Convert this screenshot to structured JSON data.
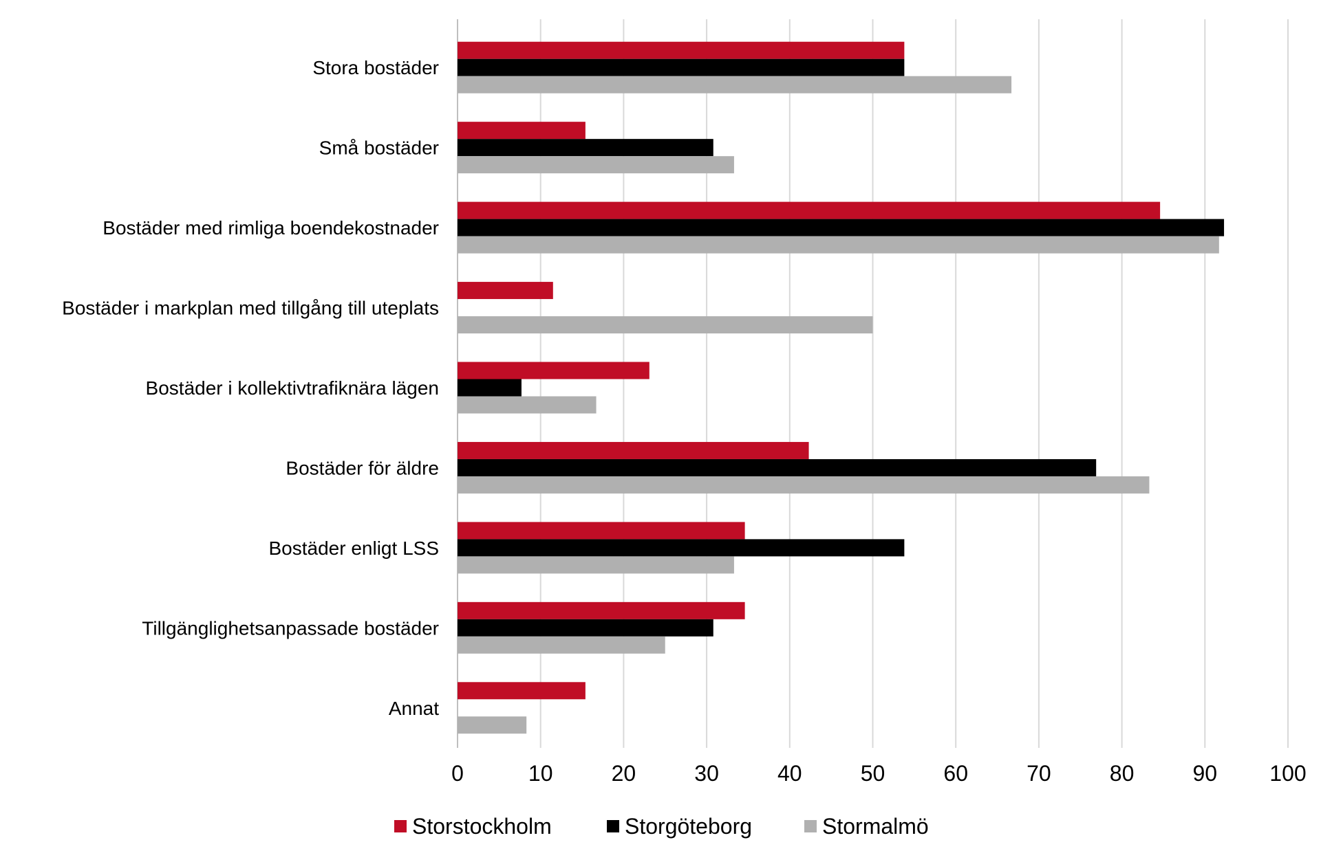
{
  "chart_data": {
    "type": "bar",
    "orientation": "horizontal",
    "categories": [
      "Stora bostäder",
      "Små bostäder",
      "Bostäder med rimliga boendekostnader",
      "Bostäder i markplan med tillgång till uteplats",
      "Bostäder i kollektivtrafiknära lägen",
      "Bostäder för äldre",
      "Bostäder enligt LSS",
      "Tillgänglighetsanpassade bostäder",
      "Annat"
    ],
    "series": [
      {
        "name": "Storstockholm",
        "color": "#c00d26",
        "values": [
          53.8,
          15.4,
          84.6,
          11.5,
          23.1,
          42.3,
          34.6,
          34.6,
          15.4
        ]
      },
      {
        "name": "Storgöteborg",
        "color": "#000000",
        "values": [
          53.8,
          30.8,
          92.3,
          0,
          7.7,
          76.9,
          53.8,
          30.8,
          0
        ]
      },
      {
        "name": "Stormalmö",
        "color": "#b0b0b0",
        "values": [
          66.7,
          33.3,
          91.7,
          50.0,
          16.7,
          83.3,
          33.3,
          25.0,
          8.3
        ]
      }
    ],
    "xlim": [
      0,
      100
    ],
    "xticks": [
      "0",
      "10",
      "20",
      "30",
      "40",
      "50",
      "60",
      "70",
      "80",
      "90",
      "100"
    ],
    "title": "",
    "xlabel": "",
    "ylabel": "",
    "grid": "vertical",
    "legend_position": "bottom"
  }
}
